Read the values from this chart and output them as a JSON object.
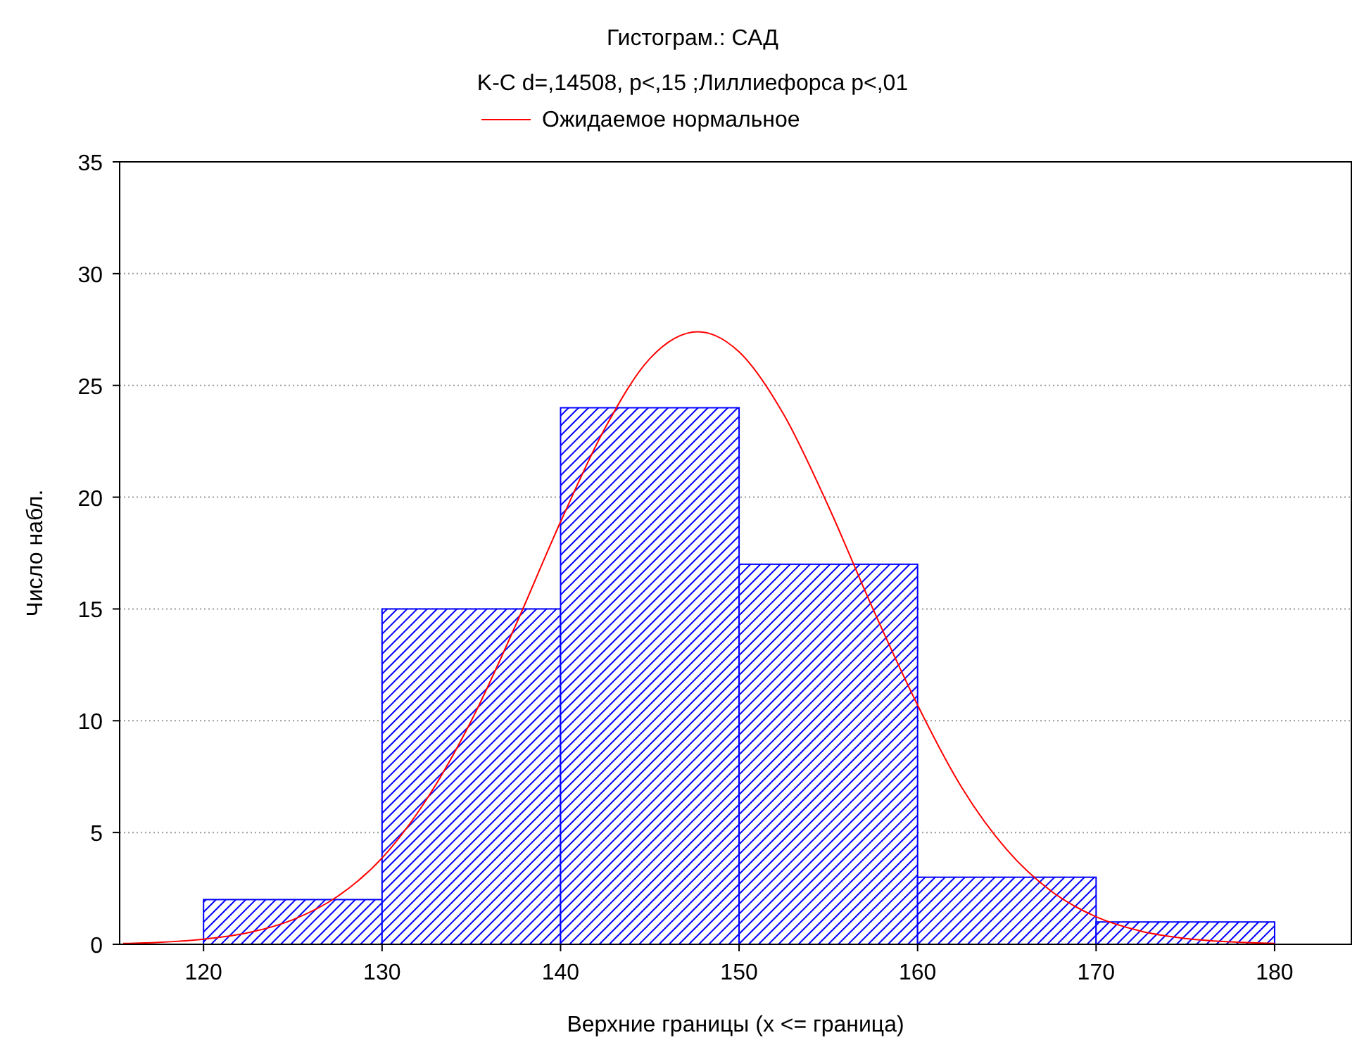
{
  "chart_data": {
    "type": "histogram",
    "title": "Гистограм.: САД",
    "subtitle": "K-C d=,14508, p<,15 ;Лиллиефорса p<,01",
    "xlabel": "Верхние границы (x <= граница)",
    "ylabel": "Число набл.",
    "bins": [
      120,
      130,
      140,
      150,
      160,
      170,
      180
    ],
    "values": [
      2,
      15,
      24,
      17,
      3,
      1
    ],
    "color": "#0000ff",
    "series": [
      {
        "type": "line",
        "name": "Ожидаемое нормальное",
        "color": "#ff0000",
        "x": [
          115.5,
          117.5,
          120,
          122.5,
          125,
          127.5,
          130,
          132.5,
          135,
          137.5,
          140,
          142.5,
          145,
          147.7,
          150,
          152.5,
          155,
          157.5,
          160,
          162.5,
          165,
          167.5,
          170,
          172.5,
          175,
          177.5,
          180
        ],
        "values": [
          0.04,
          0.09,
          0.23,
          0.52,
          1.1,
          2.14,
          3.86,
          6.49,
          10,
          14.3,
          18.9,
          23.1,
          26.2,
          27.4,
          26.5,
          23.7,
          19.6,
          15,
          10.7,
          6.98,
          4.23,
          2.37,
          1.23,
          0.59,
          0.26,
          0.11,
          0.04
        ]
      }
    ],
    "xlim": [
      115.3,
      184.3
    ],
    "xticks": [
      120,
      130,
      140,
      150,
      160,
      170,
      180
    ],
    "ylim": [
      0,
      35
    ],
    "yticks": [
      0,
      5,
      10,
      15,
      20,
      25,
      30,
      35
    ],
    "grid": "y",
    "legend": "top",
    "line_style": "solid",
    "marker": "none"
  }
}
